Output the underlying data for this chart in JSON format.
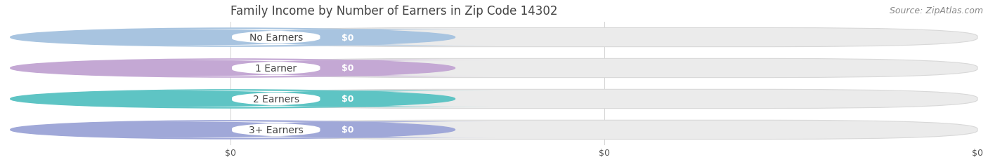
{
  "title": "Family Income by Number of Earners in Zip Code 14302",
  "source": "Source: ZipAtlas.com",
  "categories": [
    "No Earners",
    "1 Earner",
    "2 Earners",
    "3+ Earners"
  ],
  "values": [
    0,
    0,
    0,
    0
  ],
  "bar_colors": [
    "#a8c4e0",
    "#c4a8d4",
    "#5ec4c4",
    "#a0a8d8"
  ],
  "bar_bg_color": "#ebebeb",
  "bar_bg_edge": "#e0e0e0",
  "value_label": "$0",
  "tick_labels": [
    "$0",
    "$0",
    "$0"
  ],
  "background_color": "#ffffff",
  "title_fontsize": 12,
  "source_fontsize": 9,
  "label_fontsize": 10,
  "value_fontsize": 9,
  "title_color": "#444444",
  "source_color": "#888888",
  "label_text_color": "#444444"
}
